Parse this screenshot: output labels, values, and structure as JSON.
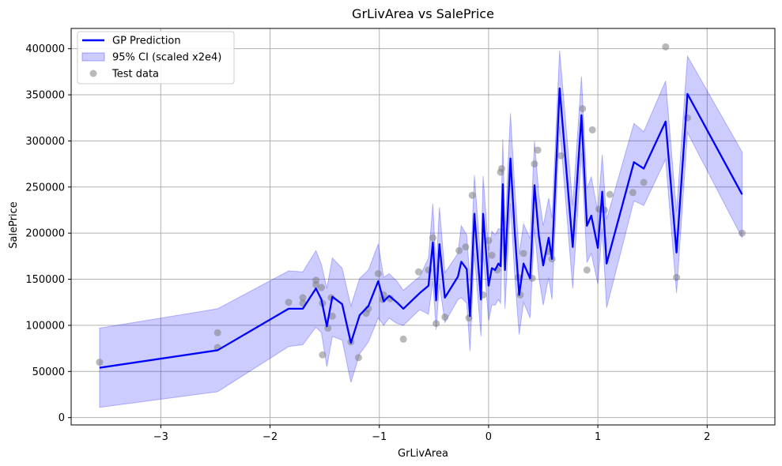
{
  "chart_data": {
    "type": "line",
    "title": "GrLivArea vs SalePrice",
    "xlabel": "GrLivArea",
    "ylabel": "SalePrice",
    "xlim": [
      -3.82,
      2.62
    ],
    "ylim": [
      -8000,
      422000
    ],
    "xticks": [
      -3,
      -2,
      -1,
      0,
      1,
      2
    ],
    "xtick_labels": [
      "−3",
      "−2",
      "−1",
      "0",
      "1",
      "2"
    ],
    "yticks": [
      0,
      50000,
      100000,
      150000,
      200000,
      250000,
      300000,
      350000,
      400000
    ],
    "ytick_labels": [
      "0",
      "50000",
      "100000",
      "150000",
      "200000",
      "250000",
      "300000",
      "350000",
      "400000"
    ],
    "grid": true,
    "legend_position": "upper-left",
    "colors": {
      "prediction": "#0000ff",
      "ci_fill": "#0000ff",
      "test_points": "#808080"
    },
    "series": [
      {
        "name": "GP Prediction",
        "kind": "line",
        "points": [
          [
            -3.56,
            54000
          ],
          [
            -2.48,
            73000
          ],
          [
            -1.83,
            118000
          ],
          [
            -1.7,
            118000
          ],
          [
            -1.58,
            140000
          ],
          [
            -1.53,
            128000
          ],
          [
            -1.48,
            99000
          ],
          [
            -1.43,
            131000
          ],
          [
            -1.34,
            123000
          ],
          [
            -1.26,
            81000
          ],
          [
            -1.18,
            111000
          ],
          [
            -1.1,
            121000
          ],
          [
            -1.01,
            148000
          ],
          [
            -0.96,
            126000
          ],
          [
            -0.91,
            132000
          ],
          [
            -0.84,
            125000
          ],
          [
            -0.78,
            118000
          ],
          [
            -0.63,
            135000
          ],
          [
            -0.55,
            143000
          ],
          [
            -0.51,
            190000
          ],
          [
            -0.48,
            127000
          ],
          [
            -0.45,
            188000
          ],
          [
            -0.4,
            130000
          ],
          [
            -0.28,
            153000
          ],
          [
            -0.25,
            169000
          ],
          [
            -0.2,
            161000
          ],
          [
            -0.17,
            110000
          ],
          [
            -0.13,
            221000
          ],
          [
            -0.07,
            128000
          ],
          [
            -0.05,
            221000
          ],
          [
            0.0,
            143000
          ],
          [
            0.03,
            162000
          ],
          [
            0.06,
            160000
          ],
          [
            0.09,
            167000
          ],
          [
            0.11,
            164000
          ],
          [
            0.13,
            253000
          ],
          [
            0.15,
            160000
          ],
          [
            0.2,
            281000
          ],
          [
            0.24,
            200000
          ],
          [
            0.28,
            133000
          ],
          [
            0.32,
            167000
          ],
          [
            0.38,
            151000
          ],
          [
            0.42,
            252000
          ],
          [
            0.46,
            197000
          ],
          [
            0.5,
            165000
          ],
          [
            0.55,
            195000
          ],
          [
            0.58,
            172000
          ],
          [
            0.65,
            357000
          ],
          [
            0.77,
            185000
          ],
          [
            0.85,
            328000
          ],
          [
            0.9,
            208000
          ],
          [
            0.94,
            219000
          ],
          [
            1.0,
            184000
          ],
          [
            1.04,
            245000
          ],
          [
            1.08,
            167000
          ],
          [
            1.33,
            277000
          ],
          [
            1.42,
            270000
          ],
          [
            1.62,
            321000
          ],
          [
            1.72,
            179000
          ],
          [
            1.82,
            351000
          ],
          [
            2.32,
            242000
          ]
        ]
      },
      {
        "name": "95% CI (scaled x2e4)",
        "kind": "band",
        "points": [
          [
            -3.56,
            11000,
            97000
          ],
          [
            -2.48,
            28000,
            118000
          ],
          [
            -1.83,
            77000,
            159000
          ],
          [
            -1.7,
            79000,
            158000
          ],
          [
            -1.58,
            98000,
            181000
          ],
          [
            -1.53,
            92000,
            166000
          ],
          [
            -1.48,
            55000,
            140000
          ],
          [
            -1.43,
            88000,
            173000
          ],
          [
            -1.34,
            84000,
            162000
          ],
          [
            -1.26,
            38000,
            121000
          ],
          [
            -1.18,
            69000,
            151000
          ],
          [
            -1.1,
            82000,
            160000
          ],
          [
            -1.01,
            108000,
            188000
          ],
          [
            -0.96,
            100000,
            152000
          ],
          [
            -0.91,
            108000,
            156000
          ],
          [
            -0.84,
            102000,
            148000
          ],
          [
            -0.78,
            100000,
            138000
          ],
          [
            -0.63,
            117000,
            153000
          ],
          [
            -0.55,
            112000,
            173000
          ],
          [
            -0.51,
            148000,
            232000
          ],
          [
            -0.48,
            95000,
            160000
          ],
          [
            -0.45,
            145000,
            228000
          ],
          [
            -0.4,
            103000,
            157000
          ],
          [
            -0.28,
            128000,
            178000
          ],
          [
            -0.25,
            130000,
            208000
          ],
          [
            -0.2,
            124000,
            198000
          ],
          [
            -0.17,
            72000,
            148000
          ],
          [
            -0.13,
            178000,
            263000
          ],
          [
            -0.07,
            88000,
            168000
          ],
          [
            -0.05,
            180000,
            262000
          ],
          [
            0.0,
            105000,
            181000
          ],
          [
            0.03,
            122000,
            202000
          ],
          [
            0.06,
            122000,
            198000
          ],
          [
            0.09,
            128000,
            205000
          ],
          [
            0.11,
            124000,
            204000
          ],
          [
            0.13,
            205000,
            302000
          ],
          [
            0.15,
            118000,
            202000
          ],
          [
            0.2,
            232000,
            330000
          ],
          [
            0.24,
            152000,
            248000
          ],
          [
            0.28,
            90000,
            177000
          ],
          [
            0.32,
            125000,
            210000
          ],
          [
            0.38,
            108000,
            194000
          ],
          [
            0.42,
            205000,
            300000
          ],
          [
            0.46,
            152000,
            242000
          ],
          [
            0.5,
            122000,
            208000
          ],
          [
            0.55,
            152000,
            238000
          ],
          [
            0.58,
            128000,
            216000
          ],
          [
            0.65,
            316000,
            398000
          ],
          [
            0.77,
            140000,
            230000
          ],
          [
            0.85,
            287000,
            370000
          ],
          [
            0.9,
            168000,
            248000
          ],
          [
            0.94,
            178000,
            261000
          ],
          [
            1.0,
            145000,
            223000
          ],
          [
            1.04,
            205000,
            285000
          ],
          [
            1.08,
            119000,
            215000
          ],
          [
            1.33,
            235000,
            319000
          ],
          [
            1.42,
            230000,
            310000
          ],
          [
            1.62,
            280000,
            365000
          ],
          [
            1.72,
            135000,
            223000
          ],
          [
            1.82,
            309000,
            392000
          ],
          [
            2.32,
            195000,
            288000
          ]
        ]
      },
      {
        "name": "Test data",
        "kind": "scatter",
        "points": [
          [
            -3.56,
            60000
          ],
          [
            -2.48,
            92000
          ],
          [
            -2.48,
            76000
          ],
          [
            -1.83,
            125000
          ],
          [
            -1.7,
            130000
          ],
          [
            -1.7,
            124000
          ],
          [
            -1.58,
            149000
          ],
          [
            -1.58,
            144000
          ],
          [
            -1.53,
            141000
          ],
          [
            -1.52,
            124000
          ],
          [
            -1.52,
            68000
          ],
          [
            -1.47,
            97000
          ],
          [
            -1.44,
            130000
          ],
          [
            -1.43,
            110000
          ],
          [
            -1.26,
            82000
          ],
          [
            -1.19,
            65000
          ],
          [
            -1.12,
            113000
          ],
          [
            -1.1,
            118000
          ],
          [
            -1.01,
            156000
          ],
          [
            -0.97,
            128000
          ],
          [
            -0.96,
            133000
          ],
          [
            -0.9,
            129000
          ],
          [
            -0.78,
            85000
          ],
          [
            -0.64,
            158000
          ],
          [
            -0.55,
            160000
          ],
          [
            -0.51,
            195000
          ],
          [
            -0.48,
            102000
          ],
          [
            -0.4,
            109000
          ],
          [
            -0.27,
            181000
          ],
          [
            -0.21,
            185000
          ],
          [
            -0.18,
            108000
          ],
          [
            -0.15,
            241000
          ],
          [
            -0.05,
            133000
          ],
          [
            0.0,
            192000
          ],
          [
            0.03,
            176000
          ],
          [
            0.08,
            160000
          ],
          [
            0.11,
            266000
          ],
          [
            0.12,
            270000
          ],
          [
            0.27,
            152000
          ],
          [
            0.29,
            133000
          ],
          [
            0.32,
            178000
          ],
          [
            0.4,
            151000
          ],
          [
            0.42,
            275000
          ],
          [
            0.45,
            290000
          ],
          [
            0.55,
            180000
          ],
          [
            0.58,
            172000
          ],
          [
            0.66,
            284000
          ],
          [
            0.86,
            335000
          ],
          [
            0.9,
            160000
          ],
          [
            0.95,
            312000
          ],
          [
            1.01,
            226000
          ],
          [
            1.06,
            225000
          ],
          [
            1.11,
            242000
          ],
          [
            1.32,
            244000
          ],
          [
            1.42,
            255000
          ],
          [
            1.62,
            402000
          ],
          [
            1.72,
            152000
          ],
          [
            1.82,
            325000
          ],
          [
            2.32,
            200000
          ]
        ]
      }
    ]
  }
}
